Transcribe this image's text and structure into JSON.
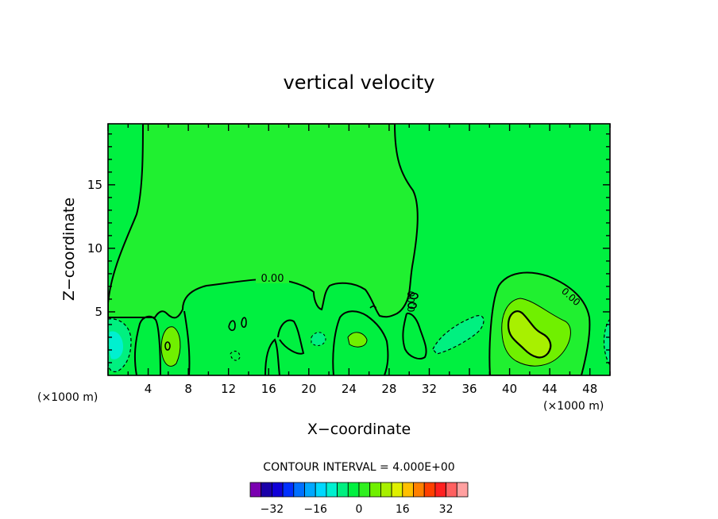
{
  "chart_data": {
    "type": "heatmap",
    "title": "vertical velocity",
    "xlabel": "X−coordinate",
    "ylabel": "Z−coordinate",
    "x_unit_left": "(×1000 m)",
    "x_unit_right": "(×1000 m)",
    "xlim": [
      0,
      50
    ],
    "ylim": [
      0,
      19.8
    ],
    "x_ticks": [
      4,
      8,
      12,
      16,
      20,
      24,
      28,
      32,
      36,
      40,
      44,
      48
    ],
    "y_ticks": [
      5,
      10,
      15
    ],
    "contour_interval_text": "CONTOUR INTERVAL = 4.000E+00",
    "contour_interval": 4,
    "zero_contour_labels": [
      "0.00",
      "0.00",
      "0.00"
    ],
    "colorbar": {
      "levels": [
        -36,
        -32,
        -28,
        -24,
        -20,
        -16,
        -12,
        -8,
        -4,
        0,
        4,
        8,
        12,
        16,
        20,
        24,
        28,
        32,
        36
      ],
      "colors": [
        "#7a00b0",
        "#1a00a8",
        "#1000d8",
        "#0030ff",
        "#0070ff",
        "#00a8ff",
        "#00d8ff",
        "#00f0d0",
        "#00f080",
        "#00f040",
        "#30f020",
        "#70f000",
        "#a8f000",
        "#e0f000",
        "#ffc000",
        "#ff8000",
        "#ff4000",
        "#ff2020",
        "#ff6060",
        "#ffa0a0"
      ],
      "tick_labels": [
        "−32",
        "−16",
        "0",
        "16",
        "32"
      ]
    },
    "field_colors": {
      "background_positive": "#20f030",
      "background_negative": "#00f040",
      "weak_negative": "#00f080",
      "strong_negative": "#00f0d0",
      "weak_positive": "#70f000",
      "strong_positive": "#a8f000"
    }
  }
}
